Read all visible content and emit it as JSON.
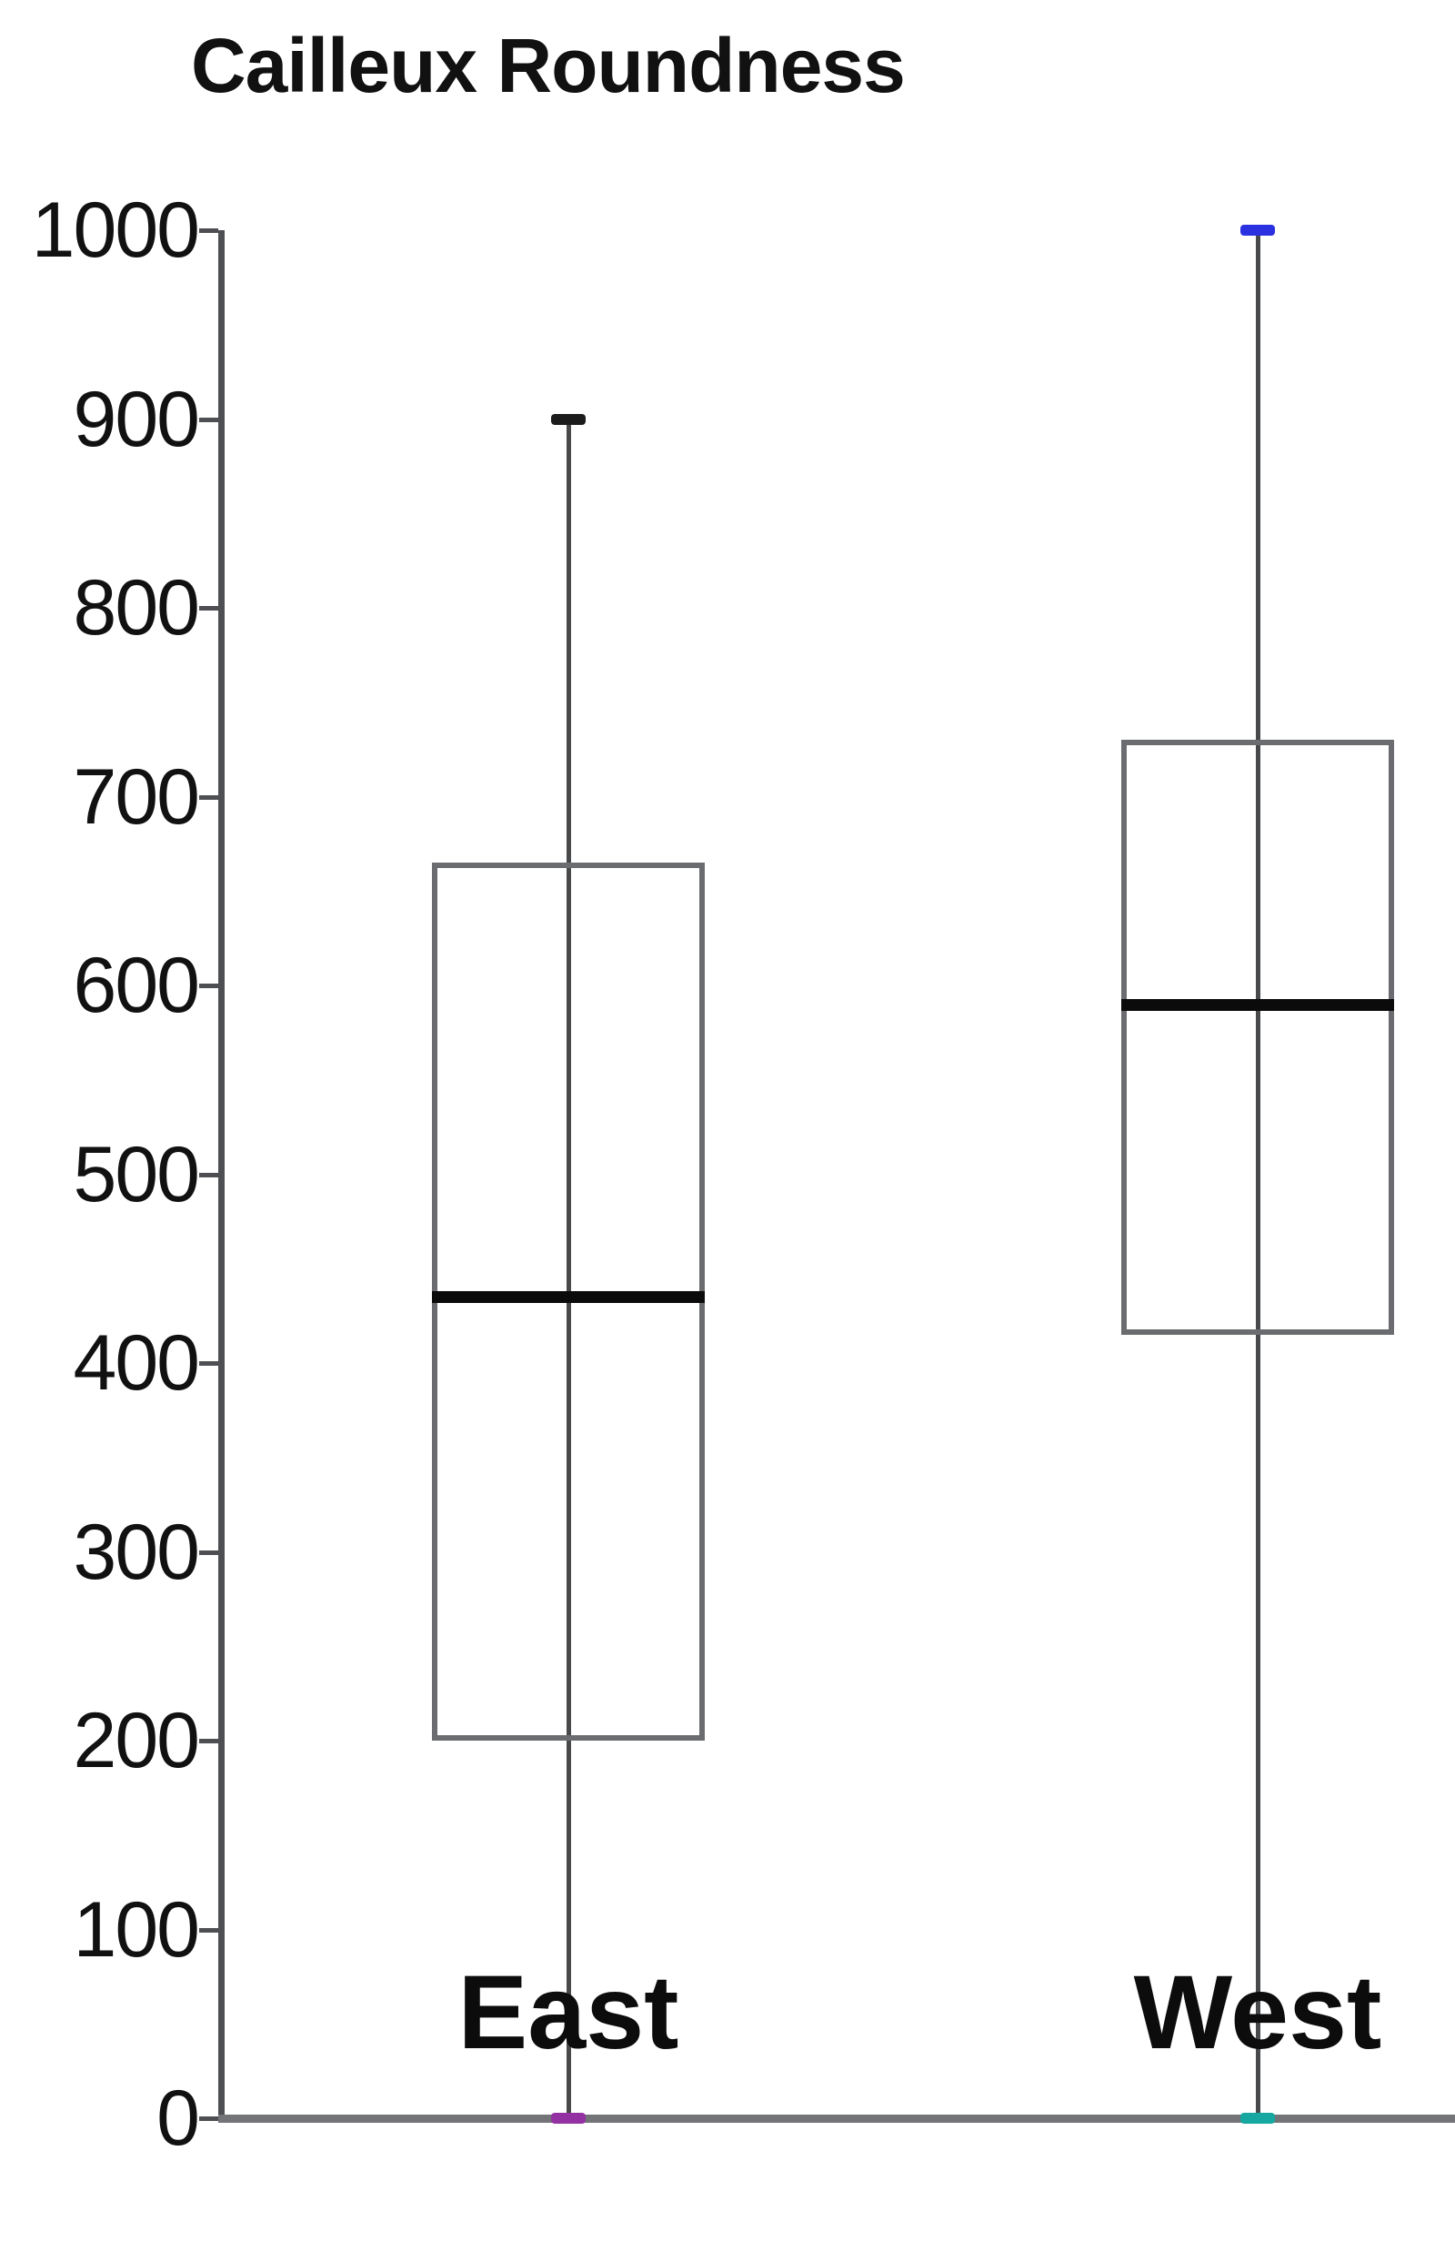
{
  "page": {
    "background": "#ffffff"
  },
  "chart_data": {
    "type": "boxplot",
    "title": "Cailleux Roundness",
    "categories": [
      "East",
      "West"
    ],
    "series": [
      {
        "name": "East",
        "min": 0,
        "q1": 200,
        "median": 435,
        "q3": 665,
        "max": 900,
        "max_cap_color": "#1c1c1c",
        "min_cap_color": "#9331a2"
      },
      {
        "name": "West",
        "min": 0,
        "q1": 415,
        "median": 590,
        "q3": 730,
        "max": 1000,
        "max_cap_color": "#2b30e0",
        "min_cap_color": "#16a8a0"
      }
    ],
    "y_axis": {
      "min": 0,
      "max": 1000,
      "tick_step": 100,
      "tick_labels": [
        "0",
        "100",
        "200",
        "300",
        "400",
        "500",
        "600",
        "700",
        "800",
        "900",
        "1000"
      ]
    },
    "grid": false,
    "legend": false,
    "colors": {
      "axis": "#4e4f52",
      "baseline": "#737477",
      "box_edge": "#6b6c6f",
      "whisker": "#48494b",
      "median": "#0b0b0b",
      "text": "#111111"
    }
  }
}
